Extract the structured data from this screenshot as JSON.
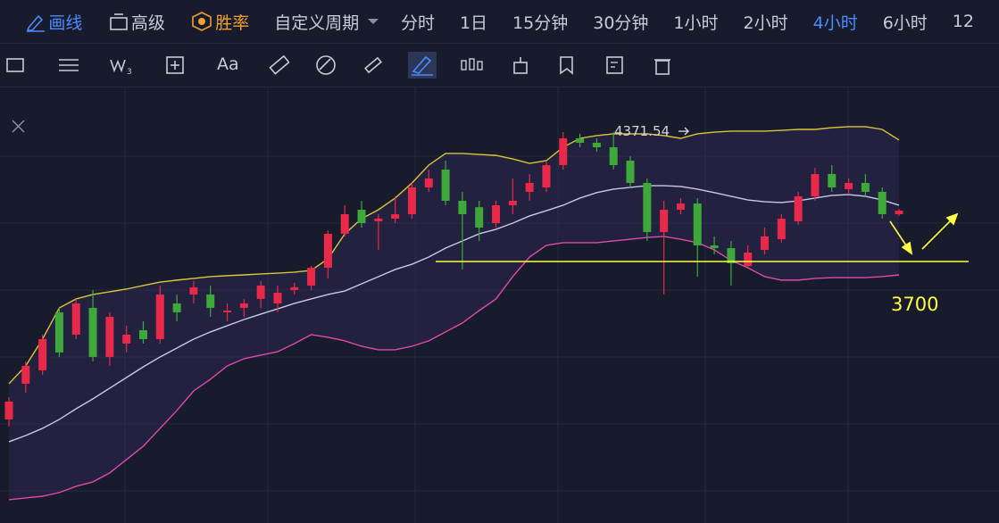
{
  "toolbar": {
    "items": [
      "画线",
      "高级",
      "胜率",
      "自定义周期",
      "分时",
      "1日",
      "15分钟",
      "30分钟",
      "1小时",
      "2小时",
      "4小时",
      "6小时",
      "12"
    ]
  },
  "drawing_tools": {
    "text_tool": "Aa"
  },
  "chart_data": {
    "type": "candlestick",
    "ylim": [
      2352,
      4588
    ],
    "up_color": "#e8294a",
    "down_color": "#3fa83a",
    "open": [
      2886,
      3070,
      3139,
      3438,
      3323,
      3461,
      3208,
      3277,
      3346,
      3300,
      3484,
      3530,
      3530,
      3438,
      3461,
      3507,
      3484,
      3553,
      3576,
      3668,
      3843,
      3967,
      3907,
      3921,
      3944,
      4082,
      4174,
      4013,
      3980,
      3898,
      3990,
      4059,
      4082,
      4197,
      4335,
      4312,
      4289,
      4220,
      4105,
      3852,
      3967,
      3999,
      3783,
      3769,
      3677,
      3760,
      3815,
      3907,
      4036,
      4151,
      4073,
      4105,
      4059,
      3944
    ],
    "high": [
      3001,
      3185,
      3323,
      3461,
      3507,
      3553,
      3438,
      3369,
      3392,
      3576,
      3530,
      3599,
      3576,
      3484,
      3507,
      3599,
      3576,
      3590,
      3677,
      3861,
      3990,
      4013,
      3944,
      4036,
      4105,
      4174,
      4220,
      4059,
      4013,
      4013,
      4128,
      4151,
      4220,
      4367,
      4358,
      4335,
      4367,
      4243,
      4128,
      4013,
      4027,
      4027,
      3829,
      3806,
      3783,
      3875,
      3944,
      4059,
      4183,
      4197,
      4128,
      4151,
      4082,
      3971
    ],
    "low": [
      2850,
      3024,
      3116,
      3208,
      3300,
      3185,
      3162,
      3231,
      3277,
      3277,
      3392,
      3484,
      3415,
      3392,
      3415,
      3461,
      3438,
      3530,
      3553,
      3613,
      3829,
      3875,
      3760,
      3898,
      3921,
      4059,
      3990,
      3659,
      3806,
      3875,
      3944,
      4013,
      4059,
      4174,
      4289,
      4266,
      4174,
      4082,
      3806,
      3530,
      3944,
      3622,
      3737,
      3576,
      3668,
      3737,
      3797,
      3889,
      4013,
      4059,
      4045,
      4036,
      3921,
      3935
    ],
    "close": [
      2978,
      3162,
      3300,
      3231,
      3484,
      3208,
      3415,
      3323,
      3300,
      3530,
      3438,
      3567,
      3461,
      3447,
      3484,
      3576,
      3539,
      3567,
      3668,
      3843,
      3944,
      3898,
      3921,
      3944,
      4082,
      4128,
      4013,
      3944,
      3875,
      3990,
      4013,
      4105,
      4197,
      4335,
      4312,
      4289,
      4197,
      4105,
      3852,
      3967,
      3999,
      3783,
      3769,
      3691,
      3746,
      3829,
      3921,
      4036,
      4151,
      4082,
      4105,
      4059,
      3944,
      3962
    ],
    "overlays": [
      {
        "color": "#d9c63a",
        "values": [
          3070,
          3162,
          3300,
          3461,
          3507,
          3530,
          3544,
          3558,
          3576,
          3594,
          3604,
          3613,
          3622,
          3627,
          3631,
          3636,
          3640,
          3645,
          3654,
          3714,
          3843,
          3921,
          3967,
          4027,
          4105,
          4197,
          4257,
          4257,
          4252,
          4247,
          4229,
          4206,
          4220,
          4289,
          4335,
          4349,
          4358,
          4358,
          4358,
          4349,
          4335,
          4358,
          4367,
          4372,
          4372,
          4372,
          4376,
          4381,
          4381,
          4390,
          4395,
          4395,
          4381,
          4326
        ]
      },
      {
        "color": "#c9c9e2",
        "values": [
          2771,
          2803,
          2840,
          2886,
          2941,
          2992,
          3047,
          3102,
          3157,
          3208,
          3254,
          3300,
          3337,
          3369,
          3401,
          3429,
          3456,
          3484,
          3507,
          3530,
          3548,
          3585,
          3622,
          3659,
          3686,
          3723,
          3769,
          3806,
          3843,
          3866,
          3898,
          3935,
          3962,
          3990,
          4027,
          4055,
          4073,
          4082,
          4091,
          4091,
          4087,
          4073,
          4055,
          4036,
          4017,
          4008,
          4004,
          4013,
          4027,
          4041,
          4045,
          4036,
          4017,
          3990
        ]
      },
      {
        "color": "#e04aa8",
        "values": [
          2472,
          2481,
          2490,
          2509,
          2541,
          2564,
          2610,
          2679,
          2748,
          2840,
          2932,
          3033,
          3093,
          3162,
          3199,
          3217,
          3235,
          3277,
          3323,
          3309,
          3291,
          3263,
          3245,
          3245,
          3263,
          3291,
          3337,
          3383,
          3447,
          3507,
          3622,
          3723,
          3783,
          3797,
          3797,
          3797,
          3806,
          3815,
          3824,
          3829,
          3815,
          3797,
          3760,
          3705,
          3668,
          3622,
          3604,
          3604,
          3613,
          3617,
          3617,
          3617,
          3622,
          3631
        ]
      }
    ],
    "hline": {
      "value": 3700,
      "color": "#ffff40"
    },
    "max_label": {
      "value": 4371.54
    }
  }
}
